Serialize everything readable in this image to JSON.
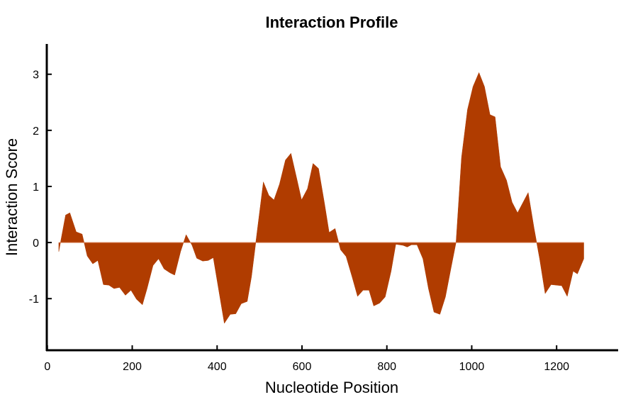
{
  "chart_data": {
    "type": "area",
    "title": "Interaction Profile",
    "xlabel": "Nucleotide Position",
    "ylabel": "Interaction Score",
    "xlim": [
      -3,
      1345
    ],
    "ylim": [
      -1.92,
      3.54
    ],
    "xticks": [
      0,
      200,
      400,
      600,
      800,
      1000,
      1200
    ],
    "yticks": [
      -1,
      0,
      1,
      2,
      3
    ],
    "grid": false,
    "fill_color": "#b03c00",
    "series": [
      {
        "name": "Interaction Score",
        "x": [
          27,
          43,
          53,
          68,
          82,
          94,
          107,
          119,
          132,
          145,
          157,
          170,
          184,
          197,
          210,
          224,
          235,
          249,
          262,
          275,
          289,
          300,
          314,
          327,
          341,
          352,
          366,
          379,
          391,
          417,
          431,
          444,
          457,
          471,
          481,
          509,
          522,
          534,
          547,
          561,
          574,
          588,
          599,
          613,
          626,
          639,
          653,
          664,
          678,
          691,
          704,
          718,
          731,
          744,
          758,
          769,
          783,
          796,
          810,
          821,
          838,
          848,
          858,
          871,
          885,
          898,
          911,
          925,
          938,
          951,
          963,
          976,
          990,
          1003,
          1017,
          1030,
          1043,
          1055,
          1068,
          1082,
          1095,
          1108,
          1133,
          1147,
          1160,
          1173,
          1187,
          1212,
          1225,
          1239,
          1249,
          1264
        ],
        "y": [
          -0.16,
          0.49,
          0.53,
          0.19,
          0.15,
          -0.24,
          -0.38,
          -0.32,
          -0.75,
          -0.76,
          -0.82,
          -0.8,
          -0.94,
          -0.85,
          -1.01,
          -1.11,
          -0.82,
          -0.41,
          -0.29,
          -0.47,
          -0.54,
          -0.58,
          -0.16,
          0.14,
          -0.05,
          -0.28,
          -0.33,
          -0.32,
          -0.27,
          -1.44,
          -1.28,
          -1.27,
          -1.09,
          -1.05,
          -0.61,
          1.08,
          0.84,
          0.76,
          1.04,
          1.47,
          1.59,
          1.13,
          0.76,
          0.96,
          1.41,
          1.32,
          0.7,
          0.18,
          0.25,
          -0.13,
          -0.25,
          -0.61,
          -0.96,
          -0.85,
          -0.85,
          -1.13,
          -1.08,
          -0.97,
          -0.51,
          -0.03,
          -0.05,
          -0.08,
          -0.04,
          -0.04,
          -0.29,
          -0.82,
          -1.24,
          -1.28,
          -0.97,
          -0.46,
          0.0,
          1.52,
          2.37,
          2.78,
          3.03,
          2.78,
          2.28,
          2.24,
          1.35,
          1.11,
          0.72,
          0.53,
          0.89,
          0.25,
          -0.29,
          -0.91,
          -0.75,
          -0.77,
          -0.96,
          -0.51,
          -0.56,
          -0.29
        ]
      }
    ]
  }
}
